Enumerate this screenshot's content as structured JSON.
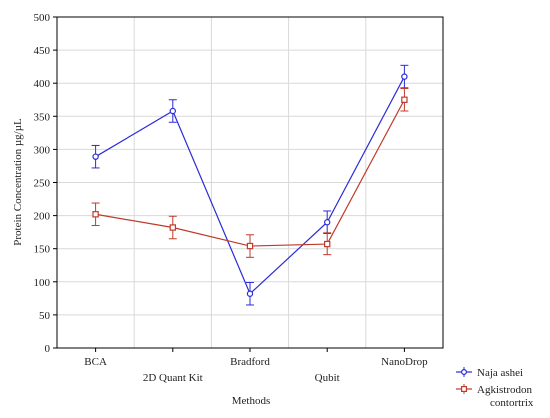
{
  "chart_data": {
    "type": "line",
    "xlabel": "Methods",
    "ylabel": "Protein Concentration µg/µL",
    "ylim": [
      0,
      500
    ],
    "yticks": [
      0,
      50,
      100,
      150,
      200,
      250,
      300,
      350,
      400,
      450,
      500
    ],
    "categories": [
      "BCA",
      "2D Quant Kit",
      "Bradford",
      "Qubit",
      "NanoDrop"
    ],
    "grid": true,
    "legend_position": "bottom-right",
    "series": [
      {
        "name": "Naja ashei",
        "color": "#2b2bd9",
        "marker": "circle",
        "values": [
          289,
          358,
          82,
          190,
          410
        ],
        "error_low": [
          272,
          341,
          65,
          173,
          393
        ],
        "error_high": [
          306,
          375,
          99,
          207,
          427
        ]
      },
      {
        "name": "Agkistrodon contortrix",
        "color": "#c0392b",
        "marker": "square",
        "values": [
          202,
          182,
          154,
          157,
          375
        ],
        "error_low": [
          185,
          165,
          137,
          141,
          358
        ],
        "error_high": [
          219,
          199,
          171,
          174,
          392
        ]
      }
    ],
    "legend_label_lines": [
      [
        "Naja ashei"
      ],
      [
        "Agkistrodon",
        "contortrix"
      ]
    ]
  }
}
